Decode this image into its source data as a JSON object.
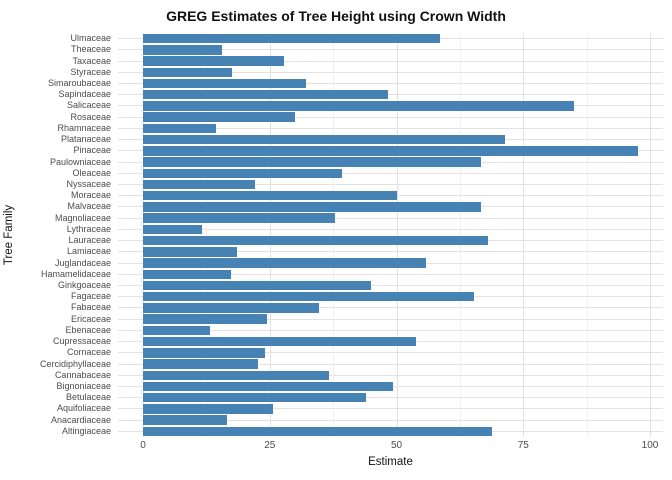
{
  "chart_data": {
    "type": "bar",
    "orientation": "horizontal",
    "title": "GREG Estimates of Tree Height using Crown Width",
    "xlabel": "Estimate",
    "ylabel": "Tree Family",
    "xlim": [
      0,
      100
    ],
    "x_major_ticks": [
      0,
      25,
      50,
      75,
      100
    ],
    "x_minor_ticks": [
      12.5,
      37.5,
      62.5,
      87.5
    ],
    "grid": true,
    "legend": "none",
    "bar_color": "#4682B4",
    "grid_major_color": "#E2E2E2",
    "grid_minor_color": "#EFEFEF",
    "background_color": "#FFFFFF",
    "categories": [
      "Ulmaceae",
      "Theaceae",
      "Taxaceae",
      "Styraceae",
      "Simaroubaceae",
      "Sapindaceae",
      "Salicaceae",
      "Rosaceae",
      "Rhamnaceae",
      "Platanaceae",
      "Pinaceae",
      "Paulowniaceae",
      "Oleaceae",
      "Nyssaceae",
      "Moraceae",
      "Malvaceae",
      "Magnoliaceae",
      "Lythraceae",
      "Lauraceae",
      "Lamiaceae",
      "Juglandaceae",
      "Hamamelidaceae",
      "Ginkgoaceae",
      "Fagaceae",
      "Fabaceae",
      "Ericaceae",
      "Ebenaceae",
      "Cupressaceae",
      "Cornaceae",
      "Cercidiphyllaceae",
      "Cannabaceae",
      "Bignoniaceae",
      "Betulaceae",
      "Aquifoliaceae",
      "Anacardiaceae",
      "Altingiaceae"
    ],
    "values": [
      58.6,
      15.5,
      27.9,
      17.6,
      32.1,
      48.4,
      85.0,
      29.9,
      14.4,
      71.4,
      97.7,
      66.7,
      39.3,
      22.1,
      50.1,
      66.7,
      37.8,
      11.6,
      68.1,
      18.6,
      55.9,
      17.3,
      44.9,
      65.3,
      34.7,
      24.4,
      13.3,
      53.8,
      24.0,
      22.7,
      36.6,
      49.4,
      44.0,
      25.7,
      16.6,
      68.9
    ]
  }
}
